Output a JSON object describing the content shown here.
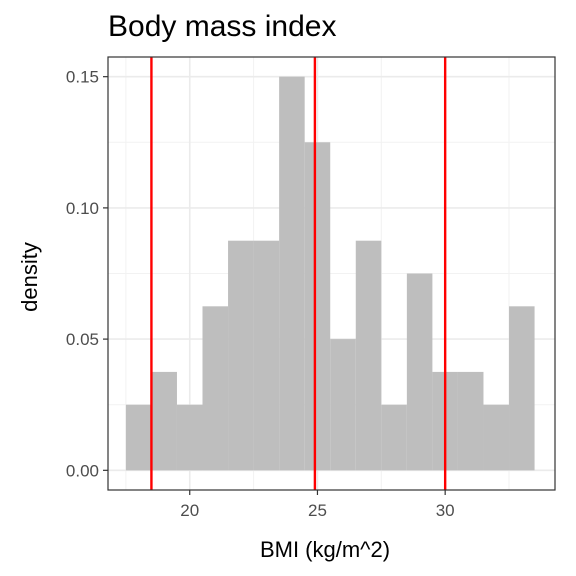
{
  "chart_data": {
    "type": "bar",
    "subtype": "histogram",
    "title": "Body mass index",
    "xlabel": "BMI (kg/m^2)",
    "ylabel": "density",
    "xlim": [
      16.8,
      34.3
    ],
    "ylim": [
      -0.0075,
      0.1575
    ],
    "x_ticks": [
      20,
      25,
      30
    ],
    "x_tick_labels": [
      "20",
      "25",
      "30"
    ],
    "y_ticks": [
      0.0,
      0.05,
      0.1,
      0.15
    ],
    "y_tick_labels": [
      "0.00",
      "0.05",
      "0.10",
      "0.15"
    ],
    "grid": true,
    "bar_color": "#bebebe",
    "bins": [
      {
        "x0": 17.5,
        "x1": 18.5,
        "density": 0.025
      },
      {
        "x0": 18.5,
        "x1": 19.5,
        "density": 0.0375
      },
      {
        "x0": 19.5,
        "x1": 20.5,
        "density": 0.025
      },
      {
        "x0": 20.5,
        "x1": 21.5,
        "density": 0.0625
      },
      {
        "x0": 21.5,
        "x1": 22.5,
        "density": 0.0875
      },
      {
        "x0": 22.5,
        "x1": 23.5,
        "density": 0.0875
      },
      {
        "x0": 23.5,
        "x1": 24.5,
        "density": 0.15
      },
      {
        "x0": 24.5,
        "x1": 25.5,
        "density": 0.125
      },
      {
        "x0": 25.5,
        "x1": 26.5,
        "density": 0.05
      },
      {
        "x0": 26.5,
        "x1": 27.5,
        "density": 0.0875
      },
      {
        "x0": 27.5,
        "x1": 28.5,
        "density": 0.025
      },
      {
        "x0": 28.5,
        "x1": 29.5,
        "density": 0.075
      },
      {
        "x0": 29.5,
        "x1": 30.5,
        "density": 0.0375
      },
      {
        "x0": 30.5,
        "x1": 31.5,
        "density": 0.0375
      },
      {
        "x0": 31.5,
        "x1": 32.5,
        "density": 0.025
      },
      {
        "x0": 32.5,
        "x1": 33.5,
        "density": 0.0625
      }
    ],
    "reference_lines": {
      "orientation": "vertical",
      "color": "#ff0000",
      "x": [
        18.5,
        24.9,
        30
      ]
    }
  }
}
